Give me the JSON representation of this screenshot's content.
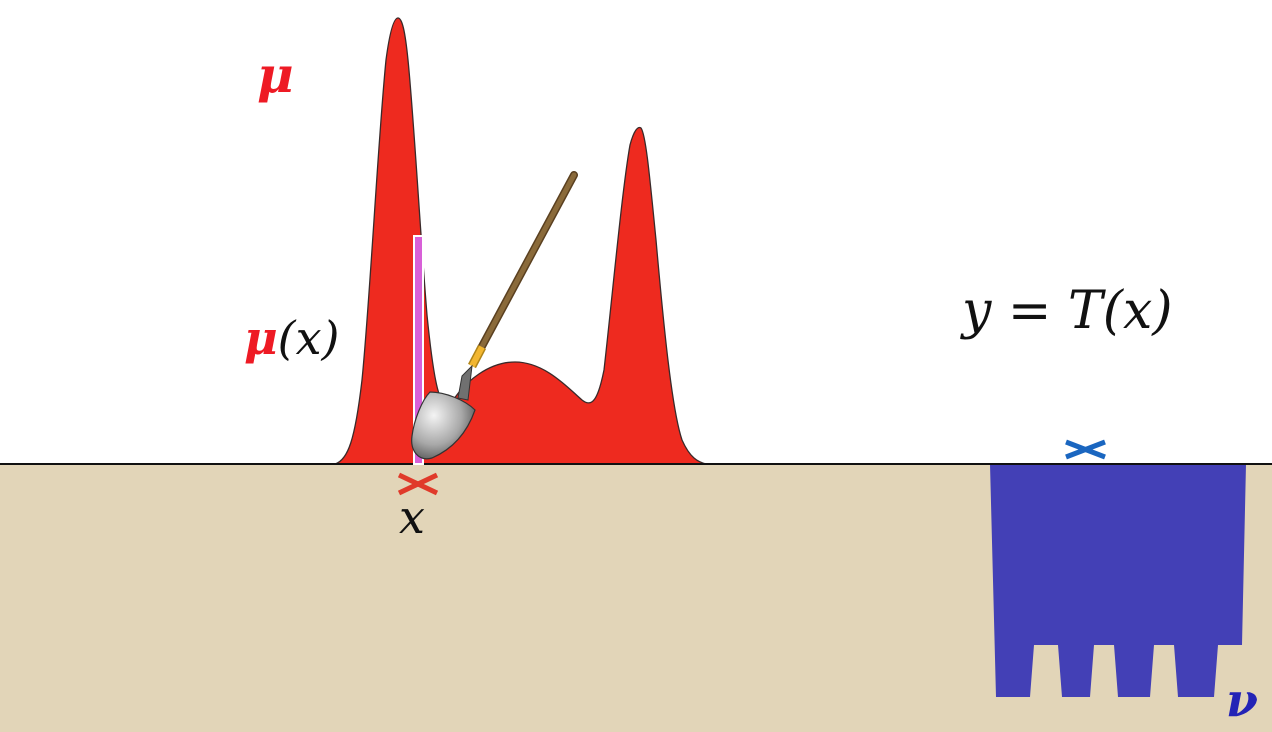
{
  "labels": {
    "mu": "μ",
    "mu_of_x_symbol": "μ",
    "mu_of_x_rest": "(x)",
    "x": "x",
    "transport_map": "y = T(x)",
    "nu": "ν"
  },
  "colors": {
    "ground": "#e2d5b8",
    "mu_fill": "#ee2a1f",
    "mu_outline": "#3a2a2a",
    "nu_fill": "#4340b6",
    "mu_label": "#ee1a24",
    "nu_label": "#2323b6",
    "x_marker": "#e03a2a",
    "y_marker": "#1a66c0",
    "column_bar": "#d860d8",
    "shovel_handle": "#8a6a3a",
    "shovel_collar": "#f2b630",
    "shovel_blade": "#9a9a9a",
    "ink": "#111111"
  },
  "icons": {
    "shovel": "shovel-icon",
    "x_marker": "cross-icon",
    "y_marker": "cross-icon"
  }
}
